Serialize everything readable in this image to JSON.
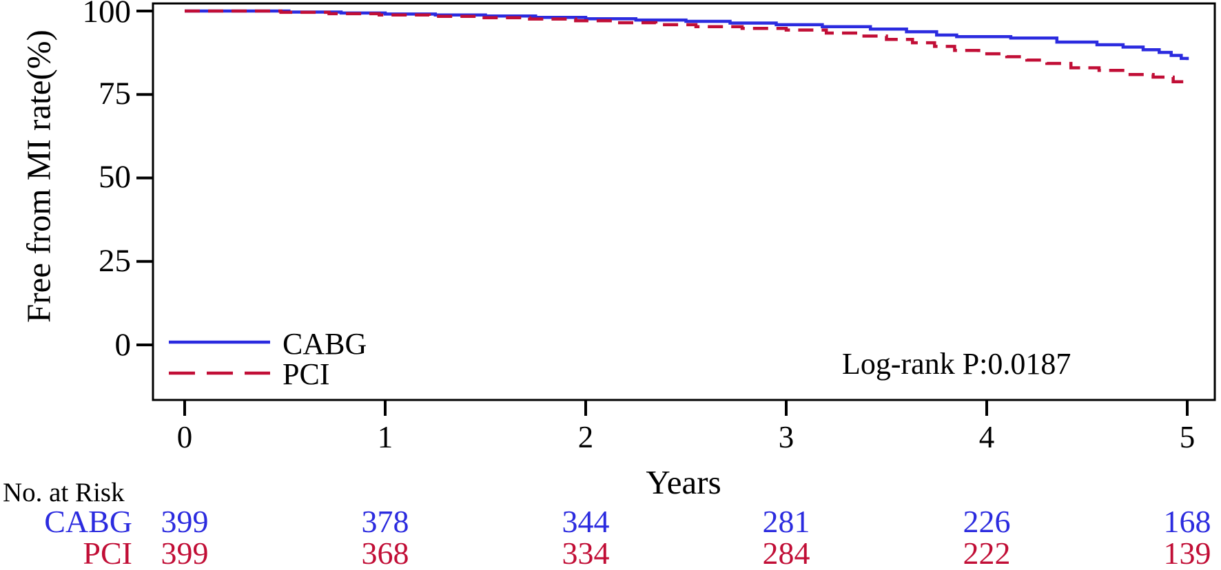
{
  "chart_data": {
    "type": "line",
    "chart_style": "kaplan-meier-step-curves",
    "title": "",
    "xlabel": "Years",
    "ylabel": "Free from MI rate(%)",
    "xlim": [
      0,
      5
    ],
    "ylim": [
      0,
      100
    ],
    "x_tick_labels": [
      "0",
      "1",
      "2",
      "3",
      "4",
      "5"
    ],
    "y_tick_labels": [
      "100",
      "75",
      "50",
      "25",
      "0"
    ],
    "grid": false,
    "legend_position": "inside-bottom-left",
    "annotation": "Log-rank P:0.0187",
    "series": [
      {
        "name": "CABG",
        "color": "#2b2bdf",
        "line_style": "solid",
        "dash": "",
        "steps": [
          [
            0,
            100
          ],
          [
            0.52,
            99.7
          ],
          [
            0.78,
            99.4
          ],
          [
            1.0,
            99.1
          ],
          [
            1.25,
            98.8
          ],
          [
            1.5,
            98.5
          ],
          [
            1.75,
            98.1
          ],
          [
            2.0,
            97.7
          ],
          [
            2.25,
            97.3
          ],
          [
            2.5,
            96.9
          ],
          [
            2.72,
            96.4
          ],
          [
            2.95,
            95.9
          ],
          [
            3.18,
            95.3
          ],
          [
            3.42,
            94.6
          ],
          [
            3.6,
            93.8
          ],
          [
            3.75,
            92.8
          ],
          [
            3.85,
            92.3
          ],
          [
            4.12,
            91.9
          ],
          [
            4.35,
            90.7
          ],
          [
            4.55,
            89.9
          ],
          [
            4.68,
            89.2
          ],
          [
            4.78,
            88.4
          ],
          [
            4.86,
            87.6
          ],
          [
            4.92,
            86.7
          ],
          [
            4.97,
            85.8
          ],
          [
            5.0,
            85.3
          ]
        ]
      },
      {
        "name": "PCI",
        "color": "#c10e36",
        "line_style": "dashed",
        "dash": "22 12",
        "steps": [
          [
            0,
            100
          ],
          [
            0.48,
            99.6
          ],
          [
            0.72,
            99.2
          ],
          [
            0.97,
            98.8
          ],
          [
            1.22,
            98.4
          ],
          [
            1.47,
            98.0
          ],
          [
            1.72,
            97.6
          ],
          [
            1.95,
            97.1
          ],
          [
            2.15,
            96.5
          ],
          [
            2.35,
            95.9
          ],
          [
            2.55,
            95.3
          ],
          [
            2.78,
            94.8
          ],
          [
            3.0,
            94.3
          ],
          [
            3.2,
            93.4
          ],
          [
            3.36,
            92.5
          ],
          [
            3.5,
            91.5
          ],
          [
            3.63,
            90.5
          ],
          [
            3.74,
            89.4
          ],
          [
            3.84,
            88.2
          ],
          [
            3.96,
            87.2
          ],
          [
            4.1,
            86.3
          ],
          [
            4.2,
            85.3
          ],
          [
            4.3,
            84.3
          ],
          [
            4.42,
            83.0
          ],
          [
            4.56,
            82.2
          ],
          [
            4.7,
            81.0
          ],
          [
            4.83,
            80.2
          ],
          [
            4.93,
            78.8
          ],
          [
            5.0,
            77.8
          ]
        ]
      }
    ],
    "risk_table": {
      "header": "No. at Risk",
      "times": [
        0,
        1,
        2,
        3,
        4,
        5
      ],
      "rows": [
        {
          "label": "CABG",
          "color": "#2b2bdf",
          "values": [
            399,
            378,
            344,
            281,
            226,
            168
          ]
        },
        {
          "label": "PCI",
          "color": "#c10e36",
          "values": [
            399,
            368,
            334,
            284,
            222,
            139
          ]
        }
      ]
    }
  }
}
